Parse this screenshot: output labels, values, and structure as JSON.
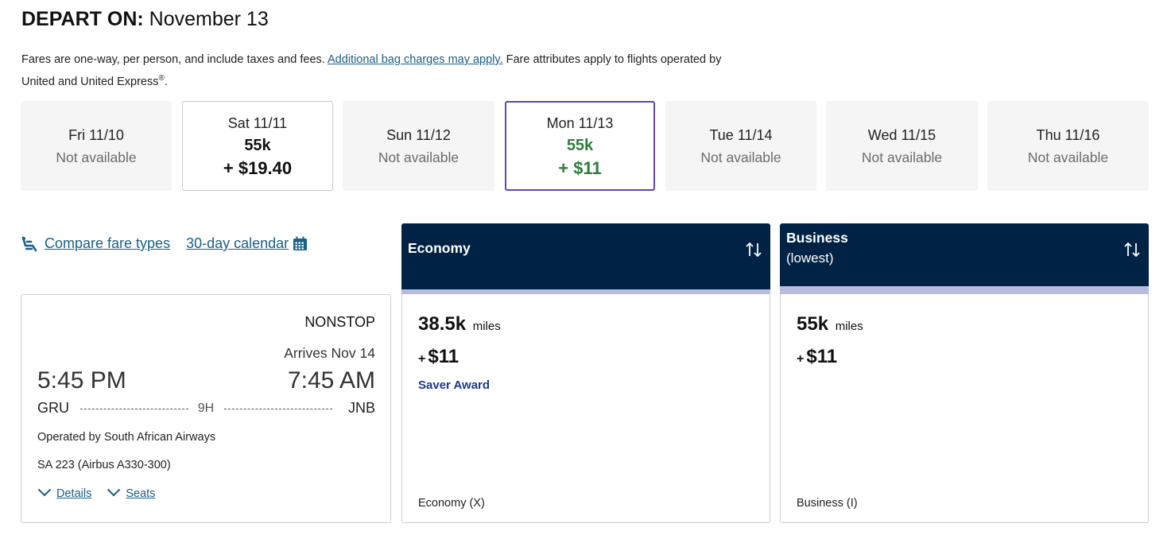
{
  "header": {
    "title_prefix": "DEPART ON:",
    "title_date": "November 13",
    "note_before": "Fares are one-way, per person, and include taxes and fees. ",
    "note_link": "Additional bag charges may apply.",
    "note_after": " Fare attributes apply to flights operated by United and United Express",
    "note_reg": "®",
    "note_end": "."
  },
  "dates": [
    {
      "label": "Fri 11/10",
      "status": "Not available"
    },
    {
      "label": "Sat 11/11",
      "miles": "55k",
      "price": "+ $19.40"
    },
    {
      "label": "Sun 11/12",
      "status": "Not available"
    },
    {
      "label": "Mon 11/13",
      "miles": "55k",
      "price": "+ $11",
      "selected": true
    },
    {
      "label": "Tue 11/14",
      "status": "Not available"
    },
    {
      "label": "Wed 11/15",
      "status": "Not available"
    },
    {
      "label": "Thu 11/16",
      "status": "Not available"
    }
  ],
  "links": {
    "compare": "Compare fare types",
    "calendar": "30-day calendar"
  },
  "flight": {
    "stops": "NONSTOP",
    "arrives": "Arrives Nov 14",
    "depart_time": "5:45 PM",
    "arrive_time": "7:45 AM",
    "origin": "GRU",
    "destination": "JNB",
    "duration": "9H",
    "operator": "Operated by South African Airways",
    "flight_no": "SA 223 (Airbus A330-300)",
    "details": "Details",
    "seats": "Seats"
  },
  "cabins": {
    "economy": {
      "name": "Economy",
      "miles": "38.5k",
      "miles_unit": "miles",
      "plus": "+",
      "fee": "$11",
      "award": "Saver Award",
      "fare_class": "Economy (X)"
    },
    "business": {
      "name": "Business",
      "sub": "(lowest)",
      "miles": "55k",
      "miles_unit": "miles",
      "plus": "+",
      "fee": "$11",
      "fare_class": "Business (I)"
    }
  },
  "colors": {
    "header_bg": "#002244",
    "link": "#1a6087",
    "selected_border": "#6244bb",
    "selected_price": "#2f7d3b",
    "band": "#b8bddf"
  }
}
